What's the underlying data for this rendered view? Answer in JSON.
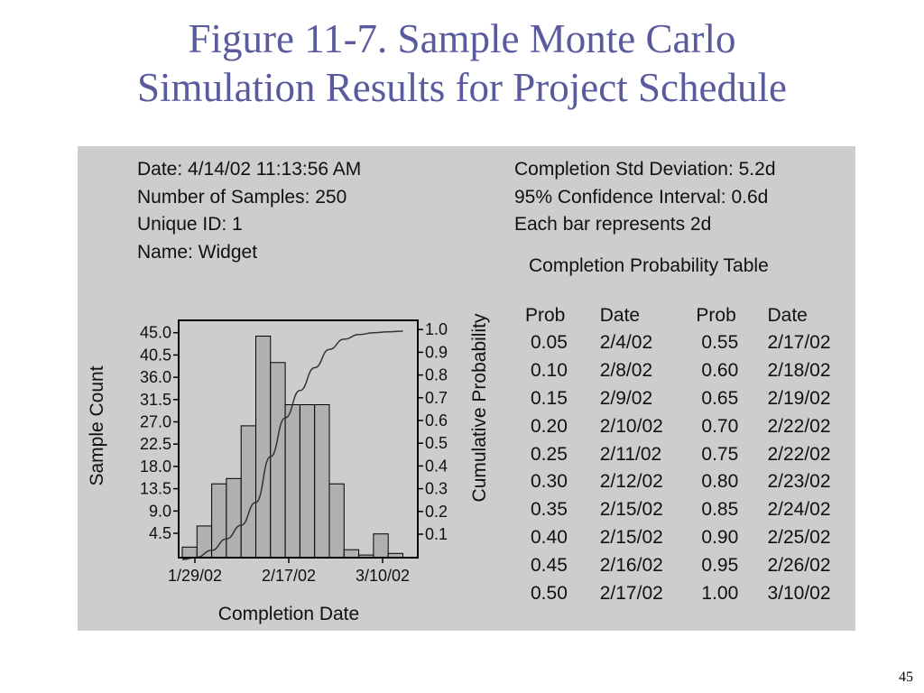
{
  "slide": {
    "title_line1": "Figure 11-7. Sample Monte Carlo",
    "title_line2": "Simulation Results for Project Schedule",
    "page_number": "45"
  },
  "info_left": {
    "date": "Date: 4/14/02 11:13:56 AM",
    "samples": "Number of Samples: 250",
    "unique_id": "Unique ID: 1",
    "name": "Name: Widget"
  },
  "info_right": {
    "std_dev": "Completion Std Deviation: 5.2d",
    "confidence": "95% Confidence Interval: 0.6d",
    "bar_width": "Each bar represents 2d"
  },
  "prob_table": {
    "title": "Completion Probability Table",
    "headers": [
      "Prob",
      "Date",
      "Prob",
      "Date"
    ],
    "rows": [
      [
        "0.05",
        "2/4/02",
        "0.55",
        "2/17/02"
      ],
      [
        "0.10",
        "2/8/02",
        "0.60",
        "2/18/02"
      ],
      [
        "0.15",
        "2/9/02",
        "0.65",
        "2/19/02"
      ],
      [
        "0.20",
        "2/10/02",
        "0.70",
        "2/22/02"
      ],
      [
        "0.25",
        "2/11/02",
        "0.75",
        "2/22/02"
      ],
      [
        "0.30",
        "2/12/02",
        "0.80",
        "2/23/02"
      ],
      [
        "0.35",
        "2/15/02",
        "0.85",
        "2/24/02"
      ],
      [
        "0.40",
        "2/15/02",
        "0.90",
        "2/25/02"
      ],
      [
        "0.45",
        "2/16/02",
        "0.95",
        "2/26/02"
      ],
      [
        "0.50",
        "2/17/02",
        "1.00",
        "3/10/02"
      ]
    ]
  },
  "chart_data": {
    "type": "bar",
    "title": "",
    "xlabel": "Completion Date",
    "ylabel": "Sample Count",
    "y2label": "Cumulative Probability",
    "x_tick_labels": [
      "1/29/02",
      "2/17/02",
      "3/10/02"
    ],
    "y_ticks": [
      "4.5",
      "9.0",
      "13.5",
      "18.0",
      "22.5",
      "27.0",
      "31.5",
      "36.0",
      "40.5",
      "45.0"
    ],
    "y2_ticks": [
      "0.1",
      "0.2",
      "0.3",
      "0.4",
      "0.5",
      "0.6",
      "0.7",
      "0.8",
      "0.9",
      "1.0"
    ],
    "ylim": [
      0,
      45
    ],
    "y2lim": [
      0,
      1
    ],
    "bar_values": [
      2,
      6,
      14,
      15,
      25,
      42,
      37,
      29,
      29,
      29,
      14,
      1.5,
      0.5,
      4.5,
      0.8
    ],
    "cumulative_curve": [
      [
        0.0,
        0.0
      ],
      [
        1.0,
        0.01
      ],
      [
        2.0,
        0.04
      ],
      [
        3.0,
        0.09
      ],
      [
        4.0,
        0.15
      ],
      [
        5.0,
        0.25
      ],
      [
        6.0,
        0.45
      ],
      [
        7.0,
        0.62
      ],
      [
        8.0,
        0.74
      ],
      [
        9.0,
        0.84
      ],
      [
        10.0,
        0.92
      ],
      [
        11.0,
        0.965
      ],
      [
        12.0,
        0.985
      ],
      [
        13.0,
        0.993
      ],
      [
        14.0,
        0.997
      ],
      [
        15.0,
        1.0
      ]
    ],
    "bar_color": "#b0b0b0",
    "grid": false,
    "legend": "none"
  }
}
